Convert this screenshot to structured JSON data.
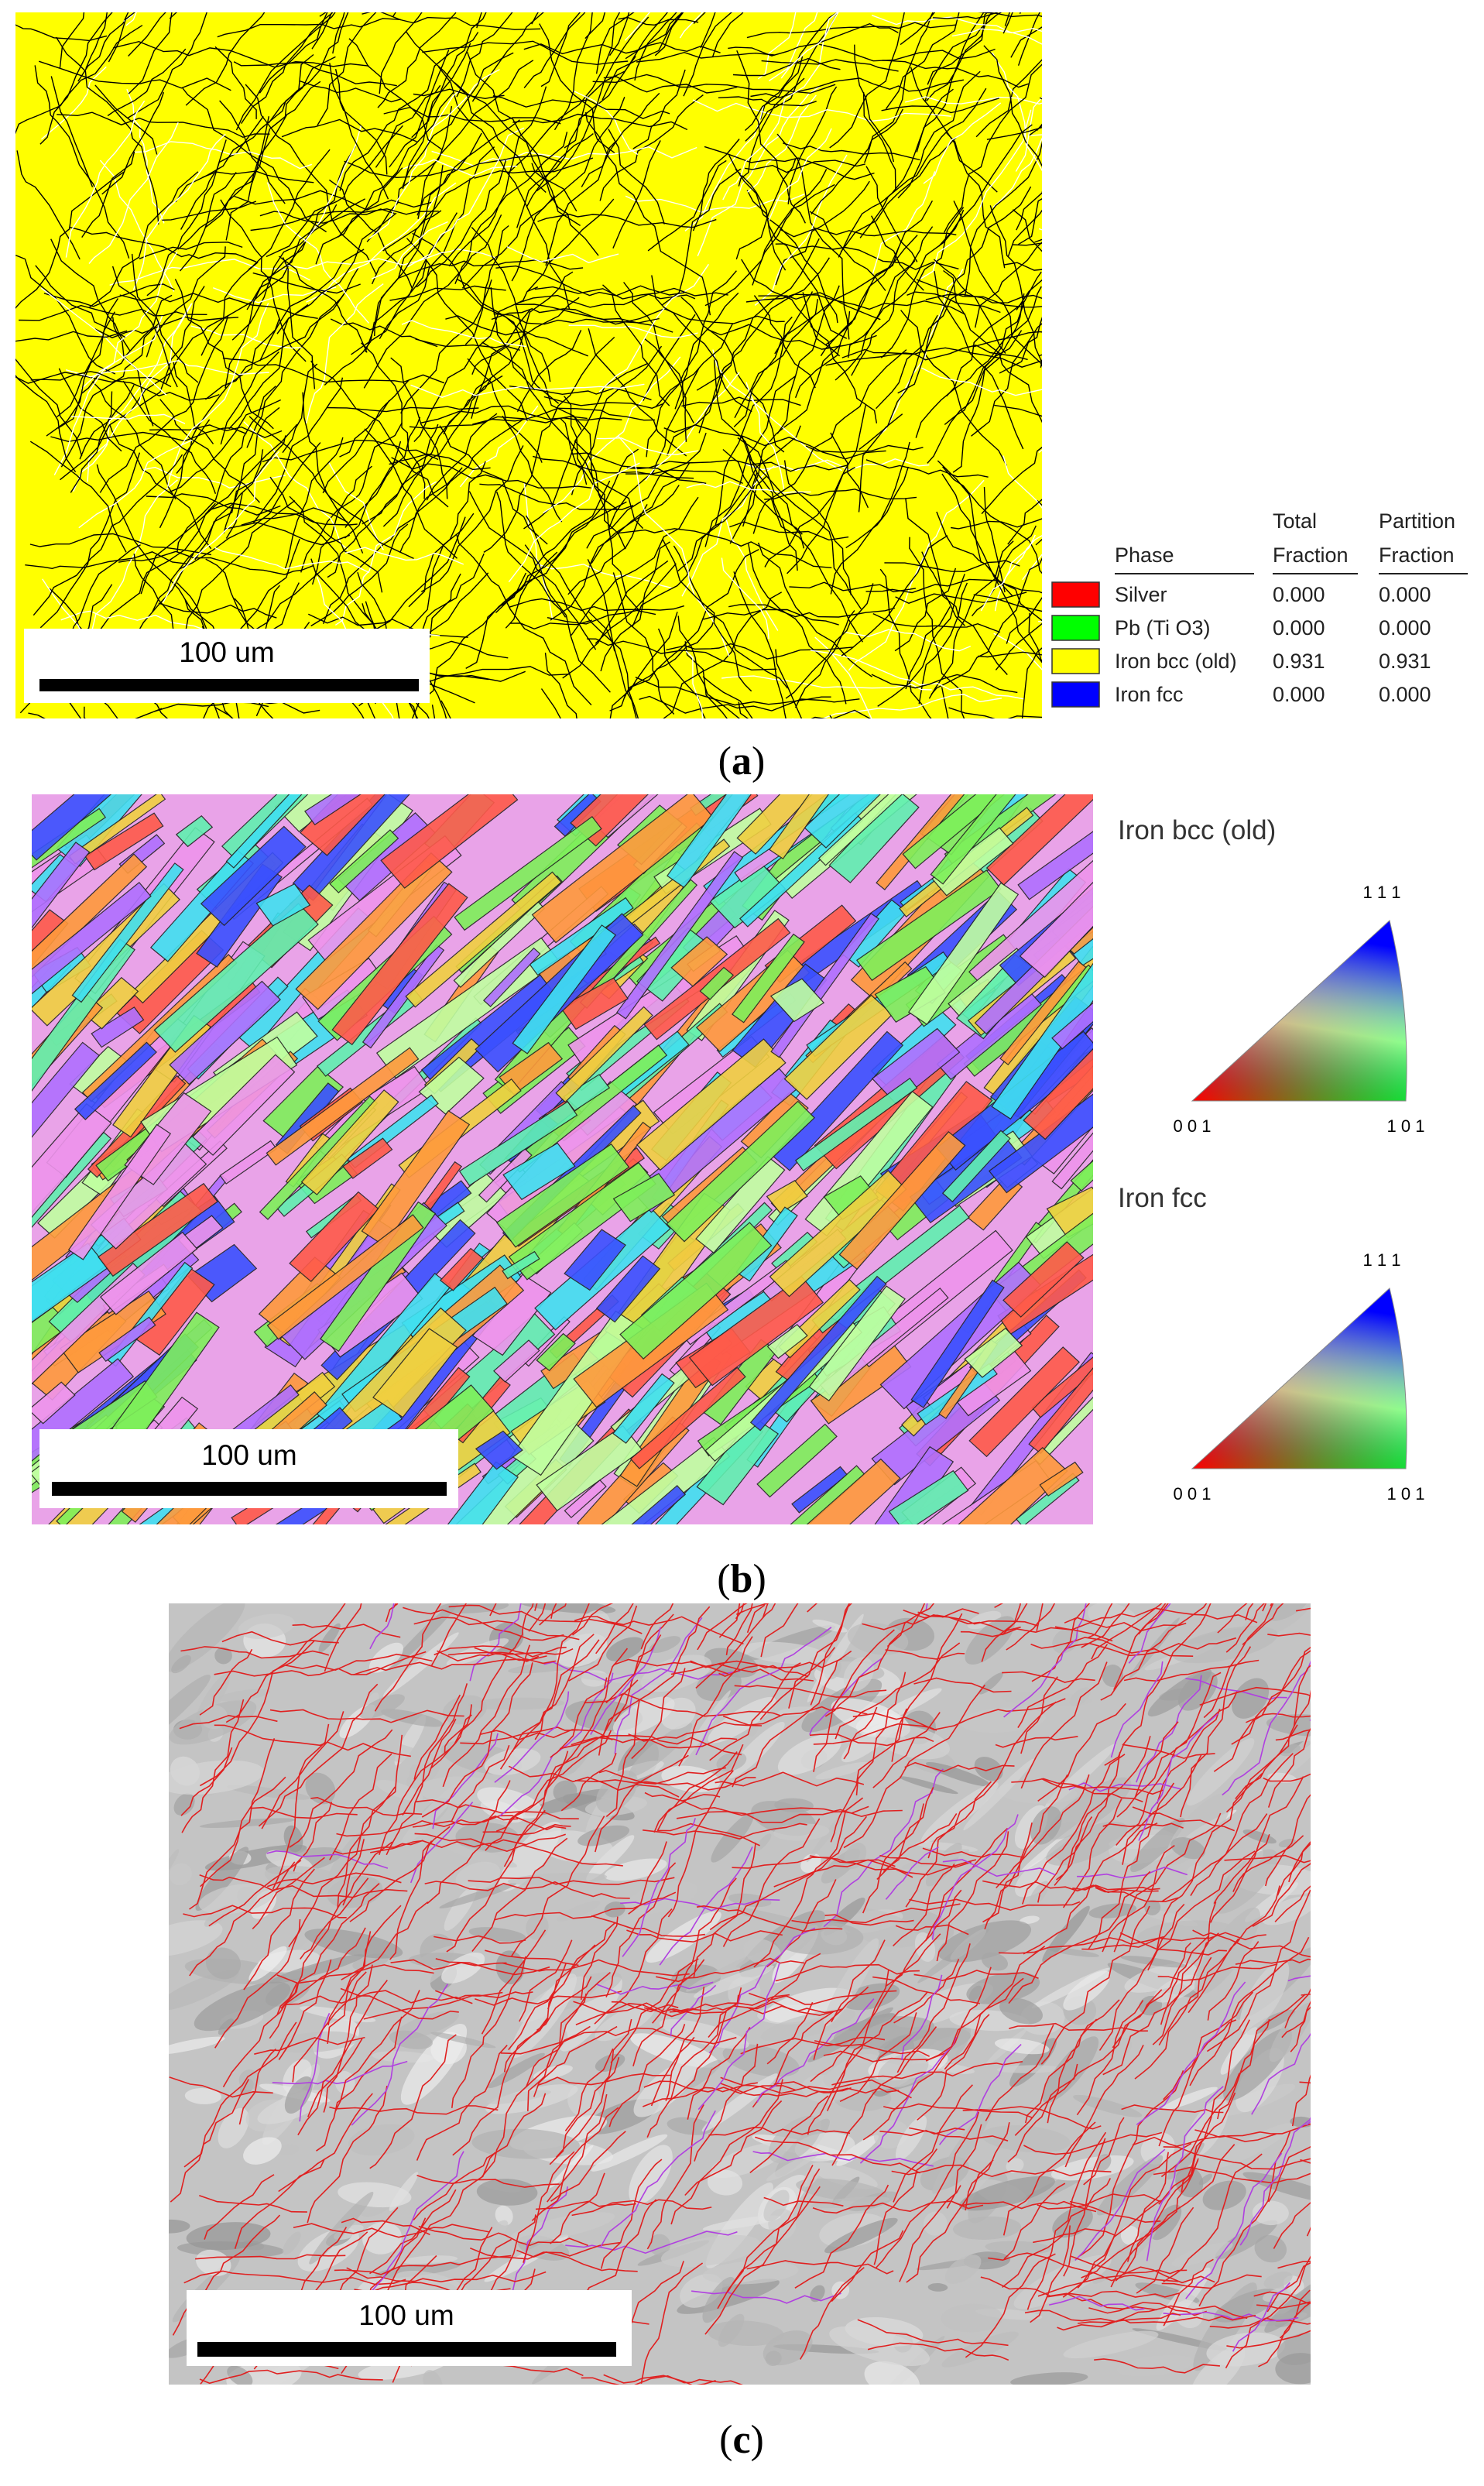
{
  "panels": [
    {
      "scale_bar": "100 um",
      "caption": {
        "open": "(",
        "label": "a",
        "close": ")"
      }
    },
    {
      "scale_bar": "100 um",
      "caption": {
        "open": "(",
        "label": "b",
        "close": ")"
      }
    },
    {
      "scale_bar": "100 um",
      "caption": {
        "open": "(",
        "label": "c",
        "close": ")"
      }
    }
  ],
  "phase_table": {
    "headers": [
      [
        "Phase"
      ],
      [
        "Total",
        "Fraction"
      ],
      [
        "Partition",
        "Fraction"
      ]
    ],
    "rows": [
      {
        "color": "#ff0000",
        "phase": "Silver",
        "total": "0.000",
        "partition": "0.000"
      },
      {
        "color": "#00ff00",
        "phase": "Pb (Ti O3)",
        "total": "0.000",
        "partition": "0.000"
      },
      {
        "color": "#ffff00",
        "phase": "Iron bcc (old)",
        "total": "0.931",
        "partition": "0.931"
      },
      {
        "color": "#0000ff",
        "phase": "Iron fcc",
        "total": "0.000",
        "partition": "0.000"
      }
    ]
  },
  "ipf_legends": [
    {
      "phase": "Iron bcc (old)",
      "corners": {
        "top": "1 1 1",
        "left": "0 0 1",
        "right": "1 0 1"
      }
    },
    {
      "phase": "Iron fcc",
      "corners": {
        "top": "1 1 1",
        "left": "0 0 1",
        "right": "1 0 1"
      }
    }
  ]
}
